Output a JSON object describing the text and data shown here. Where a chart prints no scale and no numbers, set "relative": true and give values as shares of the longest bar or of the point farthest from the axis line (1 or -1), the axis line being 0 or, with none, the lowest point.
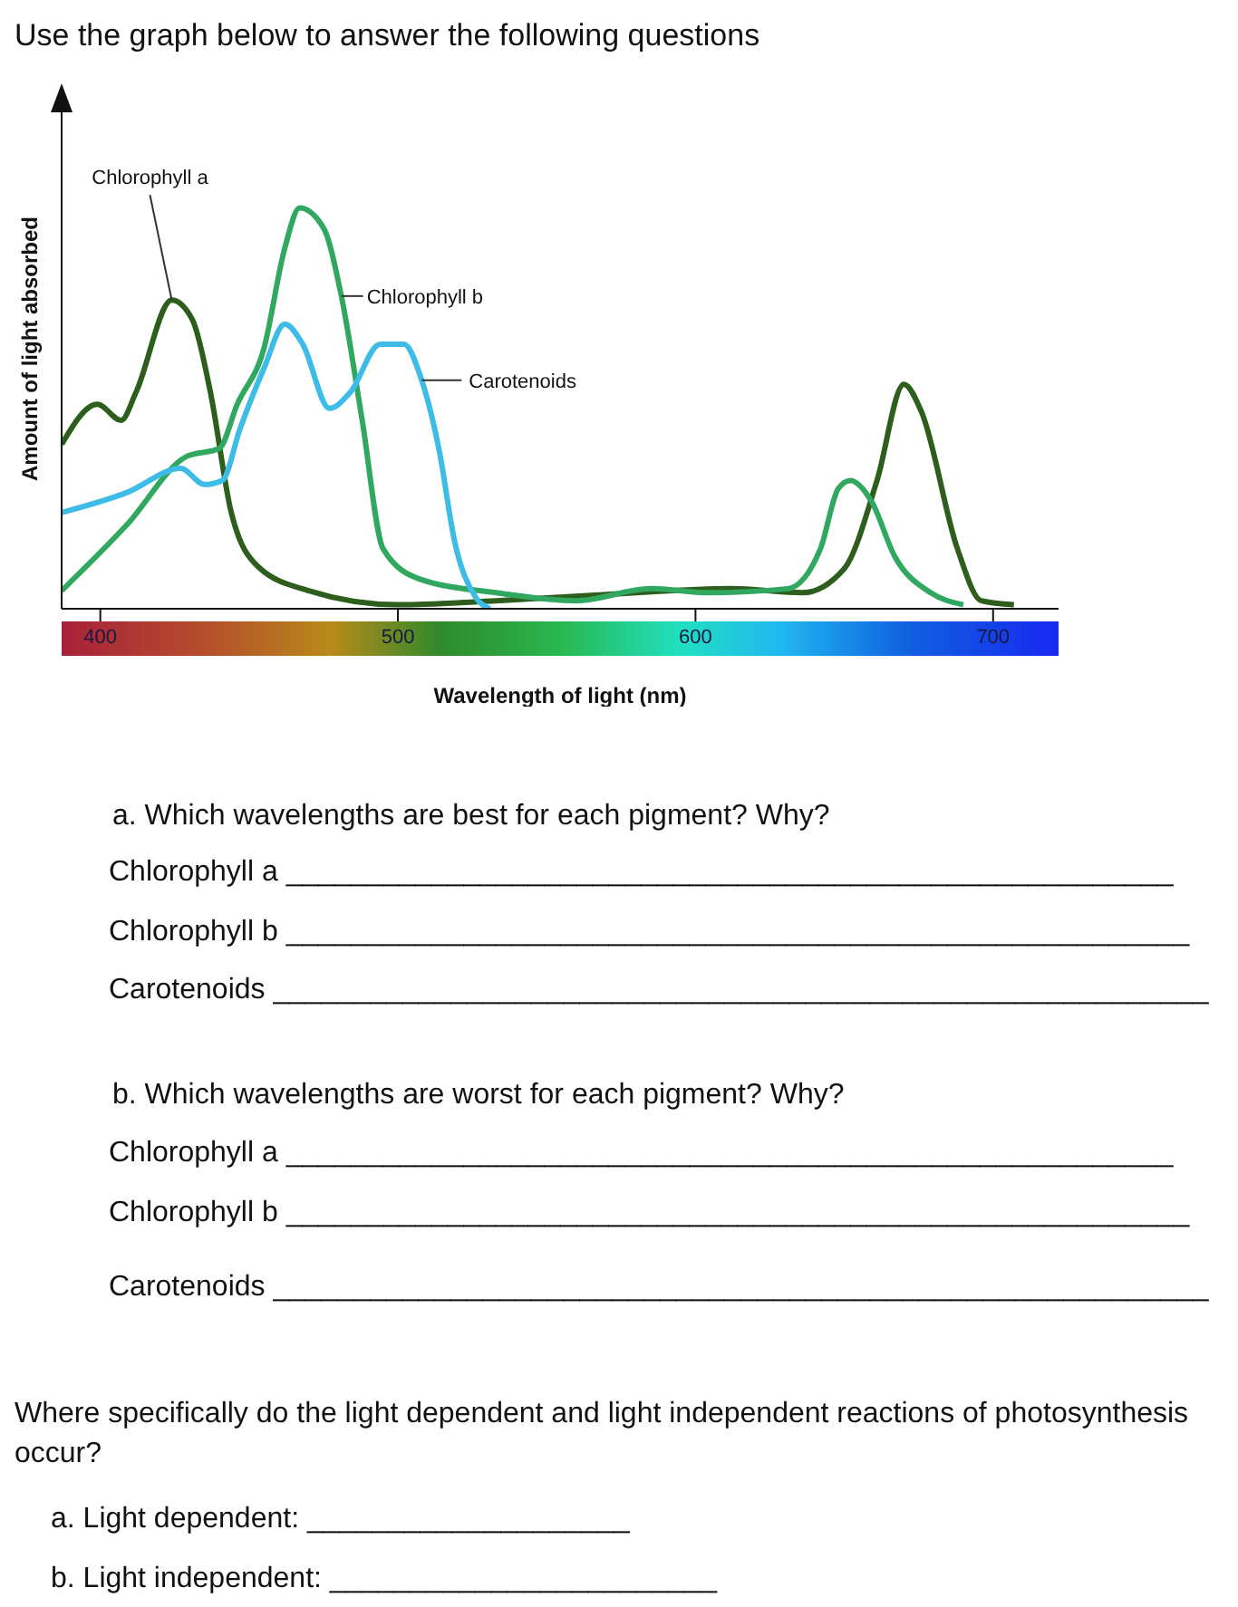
{
  "chart_data": {
    "type": "line",
    "title": "Use the graph below to answer the following questions",
    "xlabel": "Wavelength of light (nm)",
    "ylabel": "Amount of light absorbed",
    "relative": true,
    "xlim": [
      387,
      722
    ],
    "xticks": [
      400,
      500,
      600,
      700
    ],
    "series": [
      {
        "name": "Chlorophyll a",
        "color": "#2e5e1e",
        "x": [
          387,
          399,
          407,
          412,
          424,
          431,
          437,
          444,
          453,
          470,
          500,
          533,
          569,
          612,
          636,
          650,
          661,
          670,
          676,
          688,
          696,
          707
        ],
        "values": [
          0.41,
          0.51,
          0.47,
          0.54,
          0.77,
          0.72,
          0.54,
          0.24,
          0.105,
          0.045,
          0.01,
          0.02,
          0.035,
          0.05,
          0.04,
          0.1,
          0.32,
          0.56,
          0.49,
          0.15,
          0.02,
          0.01
        ]
      },
      {
        "name": "Chlorophyll b",
        "color": "#30a860",
        "x": [
          387,
          409,
          429,
          440,
          446,
          455,
          462,
          467,
          475,
          481,
          488,
          495,
          507,
          533,
          560,
          585,
          604,
          631,
          642,
          648,
          652,
          659,
          667,
          679,
          690
        ],
        "values": [
          0.045,
          0.21,
          0.38,
          0.4,
          0.51,
          0.65,
          0.9,
          1.0,
          0.95,
          0.78,
          0.47,
          0.15,
          0.075,
          0.04,
          0.02,
          0.05,
          0.04,
          0.05,
          0.15,
          0.3,
          0.32,
          0.27,
          0.13,
          0.04,
          0.01
        ]
      },
      {
        "name": "Carotenoids",
        "color": "#3dbce8",
        "x": [
          387,
          409,
          427,
          435,
          441,
          447,
          455,
          462,
          468,
          477,
          484,
          494,
          502,
          508,
          514,
          519,
          526,
          531
        ],
        "values": [
          0.24,
          0.29,
          0.35,
          0.31,
          0.32,
          0.45,
          0.6,
          0.71,
          0.66,
          0.5,
          0.54,
          0.66,
          0.66,
          0.57,
          0.39,
          0.17,
          0.03,
          0.0
        ]
      }
    ],
    "annotations": [
      "a. Which wavelengths are best for each pigment? Why?",
      "Chlorophyll a _______________________________________________________",
      "Chlorophyll b ________________________________________________________",
      "Carotenoids __________________________________________________________",
      "b. Which wavelengths are worst for each pigment? Why?",
      "Chlorophyll a _______________________________________________________",
      "Chlorophyll b ________________________________________________________",
      "Carotenoids __________________________________________________________",
      "Where specifically do the light dependent and light independent reactions of photosynthesis occur?",
      "a. Light dependent: ____________________",
      "b. Light independent: ________________________"
    ]
  }
}
